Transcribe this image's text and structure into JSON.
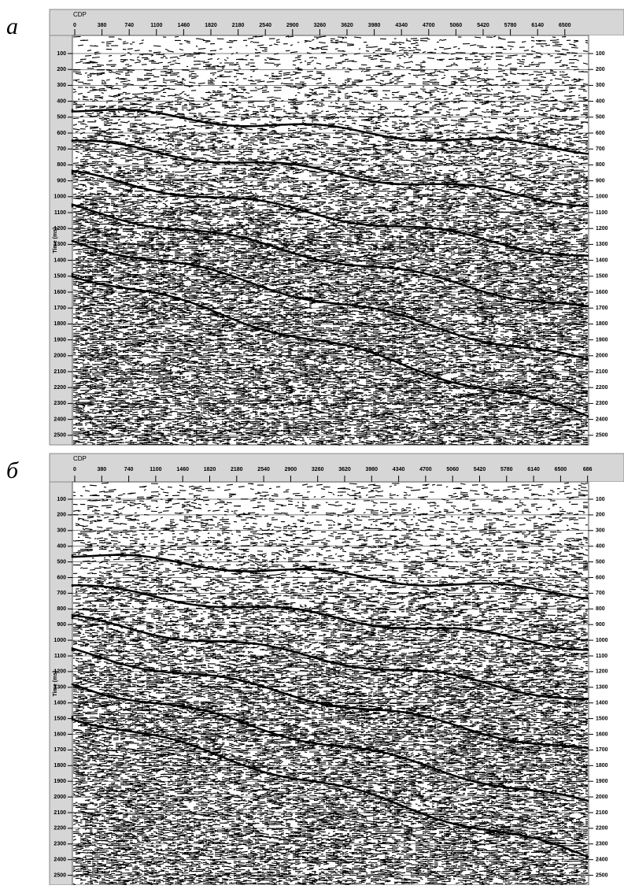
{
  "panels": [
    {
      "label": "а",
      "x_axis": {
        "title": "CDP",
        "ticks": [
          0,
          380,
          740,
          1100,
          1460,
          1820,
          2180,
          2540,
          2900,
          3260,
          3620,
          3980,
          4340,
          4700,
          5060,
          5420,
          5780,
          6140,
          6500
        ]
      },
      "y_axis": {
        "title": "Time (ms)",
        "ticks": [
          100,
          200,
          300,
          400,
          500,
          600,
          700,
          800,
          900,
          1000,
          1100,
          1200,
          1300,
          1400,
          1500,
          1600,
          1700,
          1800,
          1900,
          2000,
          2100,
          2200,
          2300,
          2400,
          2500
        ]
      },
      "right_axis": {
        "ticks": [
          100,
          200,
          300,
          400,
          500,
          600,
          700,
          800,
          900,
          1000,
          1100,
          1200,
          1300,
          1400,
          1500,
          1600,
          1700,
          1800,
          1900,
          2000,
          2100,
          2200,
          2300,
          2400,
          2500
        ]
      }
    },
    {
      "label": "б",
      "x_axis": {
        "title": "CDP",
        "ticks": [
          0,
          380,
          740,
          1100,
          1460,
          1820,
          2180,
          2540,
          2900,
          3260,
          3620,
          3980,
          4340,
          4700,
          5060,
          5420,
          5780,
          6140,
          6500,
          "686"
        ]
      },
      "y_axis": {
        "title": "Time (ms)",
        "ticks": [
          100,
          200,
          300,
          400,
          500,
          600,
          700,
          800,
          900,
          1000,
          1100,
          1200,
          1300,
          1400,
          1500,
          1600,
          1700,
          1800,
          1900,
          2000,
          2100,
          2200,
          2300,
          2400,
          2500
        ]
      },
      "right_axis": {
        "ticks": [
          100,
          200,
          300,
          400,
          500,
          600,
          700,
          800,
          900,
          1000,
          1100,
          1200,
          1300,
          1400,
          1500,
          1600,
          1700,
          1800,
          1900,
          2000,
          2100,
          2200,
          2300,
          2400,
          2500
        ]
      }
    }
  ]
}
